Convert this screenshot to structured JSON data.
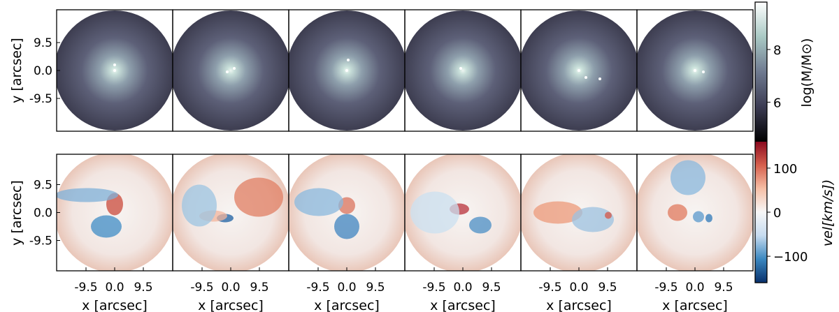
{
  "chart_data": {
    "type": "heatmap",
    "panels_per_row": 6,
    "rows": [
      {
        "name": "mass",
        "ylabel": "y [arcsec]",
        "yticks": [
          "9.5",
          "0.0",
          "-9.5"
        ],
        "colorbar": {
          "label": "log(M/M⊙)",
          "range": [
            4.5,
            9.8
          ],
          "ticks": [
            "8",
            "6"
          ],
          "tick_values": [
            8,
            6
          ],
          "colormap": "bone",
          "colors": [
            "#000000",
            "#3b3b52",
            "#6f7a90",
            "#a9c9c4",
            "#ffffff"
          ]
        }
      },
      {
        "name": "velocity",
        "ylabel": "y [arcsec]",
        "yticks": [
          "9.5",
          "0.0",
          "-9.5"
        ],
        "colorbar": {
          "label": "vel[km/s])",
          "range": [
            -160,
            160
          ],
          "ticks": [
            "100",
            "0",
            "−100"
          ],
          "tick_values": [
            100,
            0,
            -100
          ],
          "colormap": "RdBu_r",
          "colors": [
            "#08306b",
            "#3a87c0",
            "#c6dbef",
            "#f7f7f7",
            "#f6bfa6",
            "#d6604d",
            "#8b0a1f"
          ]
        }
      }
    ],
    "xlabel": "x [arcsec]",
    "xticks": [
      "-9.5",
      "0.0",
      "9.5"
    ],
    "axis_range_arcsec": [
      -19,
      19
    ]
  }
}
